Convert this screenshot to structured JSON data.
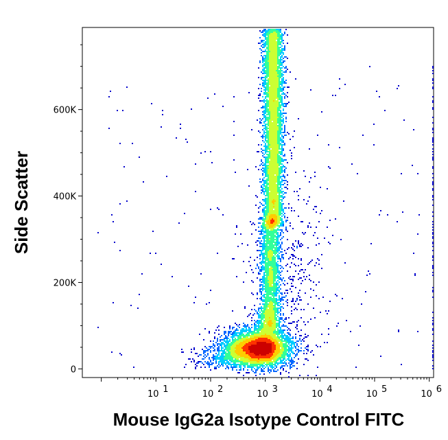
{
  "chart_data": {
    "type": "scatter",
    "subtype": "flow-cytometry density plot",
    "xlabel": "Mouse IgG2a Isotype Control FITC",
    "ylabel": "Side Scatter",
    "x_scale": "log",
    "xlim": [
      0.45,
      1200000
    ],
    "ylim": [
      -20000,
      790000
    ],
    "x_ticks": [
      {
        "value": 10,
        "base": "10",
        "exp": "1"
      },
      {
        "value": 100,
        "base": "10",
        "exp": "2"
      },
      {
        "value": 1000,
        "base": "10",
        "exp": "3"
      },
      {
        "value": 10000,
        "base": "10",
        "exp": "4"
      },
      {
        "value": 100000,
        "base": "10",
        "exp": "5"
      },
      {
        "value": 1000000,
        "base": "10",
        "exp": "6"
      }
    ],
    "y_ticks": [
      {
        "value": 0,
        "label": "0"
      },
      {
        "value": 200000,
        "label": "200K"
      },
      {
        "value": 400000,
        "label": "400K"
      },
      {
        "value": 600000,
        "label": "600K"
      }
    ],
    "colormap": [
      "#0000cc",
      "#0066ff",
      "#00ccff",
      "#33ff99",
      "#ccff33",
      "#ffcc00",
      "#ff3300",
      "#cc0000"
    ],
    "populations": [
      {
        "x_center": 750,
        "y_center": 48000,
        "x_spread_decades": 0.28,
        "y_spread": 22000,
        "density": "high"
      },
      {
        "x_center": 1400,
        "y_center": 480000,
        "x_spread_decades": 0.09,
        "y_spread": 160000,
        "density": "high"
      },
      {
        "x_center": 1300,
        "y_center": 230000,
        "x_spread_decades": 0.08,
        "y_spread": 80000,
        "density": "medium"
      }
    ],
    "grid": false,
    "legend": "none"
  }
}
